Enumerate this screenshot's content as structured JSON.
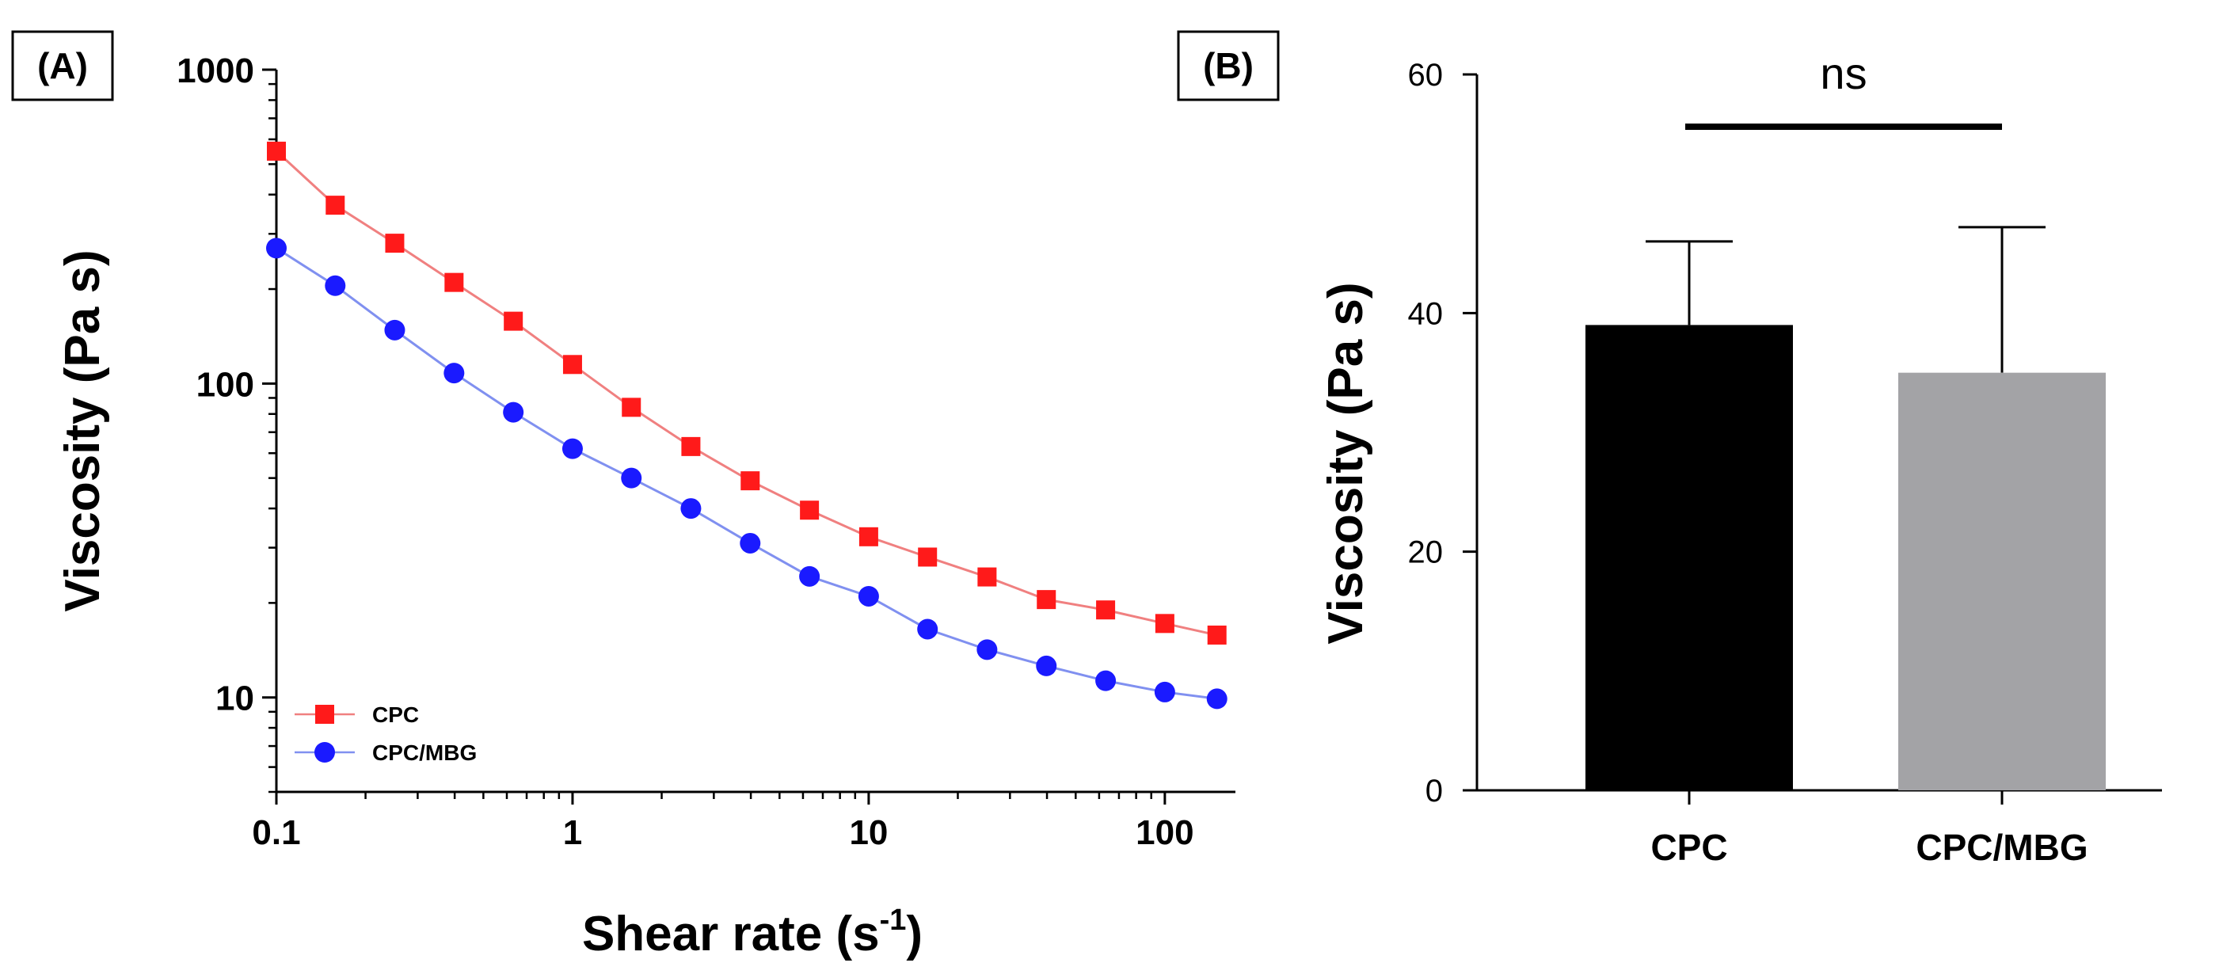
{
  "colors": {
    "cpc_line": "#f08080",
    "cpc_marker": "#ff1a1a",
    "mbg_line": "#8090f0",
    "mbg_marker": "#1a1aff",
    "bar_cpc": "#000000",
    "bar_mbg": "#a3a3a6"
  },
  "chart_data": [
    {
      "panel": "(A)",
      "type": "line",
      "xlabel_main": "Shear rate (s",
      "xlabel_sup": "-1",
      "xlabel_close": ")",
      "ylabel": "Viscosity (Pa s)",
      "xscale": "log",
      "yscale": "log",
      "xlim": [
        0.1,
        170
      ],
      "ylim": [
        5,
        1000
      ],
      "x_ticks": [
        0.1,
        1,
        10,
        100
      ],
      "x_tick_labels": [
        "0.1",
        "1",
        "10",
        "100"
      ],
      "y_ticks": [
        10,
        100,
        1000
      ],
      "y_tick_labels": [
        "10",
        "100",
        "1000"
      ],
      "legend_position": "bottom-left",
      "series": [
        {
          "name": "CPC",
          "marker": "square",
          "x": [
            0.1,
            0.158,
            0.251,
            0.398,
            0.631,
            1,
            1.58,
            2.51,
            3.98,
            6.31,
            10,
            15.8,
            25.1,
            39.8,
            63.1,
            100,
            150
          ],
          "y": [
            550,
            370,
            280,
            210,
            158,
            115,
            84,
            63,
            49,
            39.5,
            32.5,
            28,
            24.2,
            20.5,
            19,
            17.2,
            15.8
          ]
        },
        {
          "name": "CPC/MBG",
          "marker": "circle",
          "x": [
            0.1,
            0.158,
            0.251,
            0.398,
            0.631,
            1,
            1.58,
            2.51,
            3.98,
            6.31,
            10,
            15.8,
            25.1,
            39.8,
            63.1,
            100,
            150
          ],
          "y": [
            270,
            205,
            148,
            108,
            81,
            62,
            50,
            40,
            31,
            24.3,
            21,
            16.5,
            14.2,
            12.6,
            11.3,
            10.4,
            9.9
          ]
        }
      ]
    },
    {
      "panel": "(B)",
      "type": "bar",
      "categories": [
        "CPC",
        "CPC/MBG"
      ],
      "values": [
        39,
        35
      ],
      "errors": [
        7,
        12.2
      ],
      "ylabel": "Viscosity (Pa s)",
      "ylim": [
        0,
        60
      ],
      "y_ticks": [
        0,
        20,
        40,
        60
      ],
      "y_tick_labels": [
        "0",
        "20",
        "40",
        "60"
      ],
      "significance": {
        "label": "ns",
        "between": [
          "CPC",
          "CPC/MBG"
        ]
      }
    }
  ]
}
